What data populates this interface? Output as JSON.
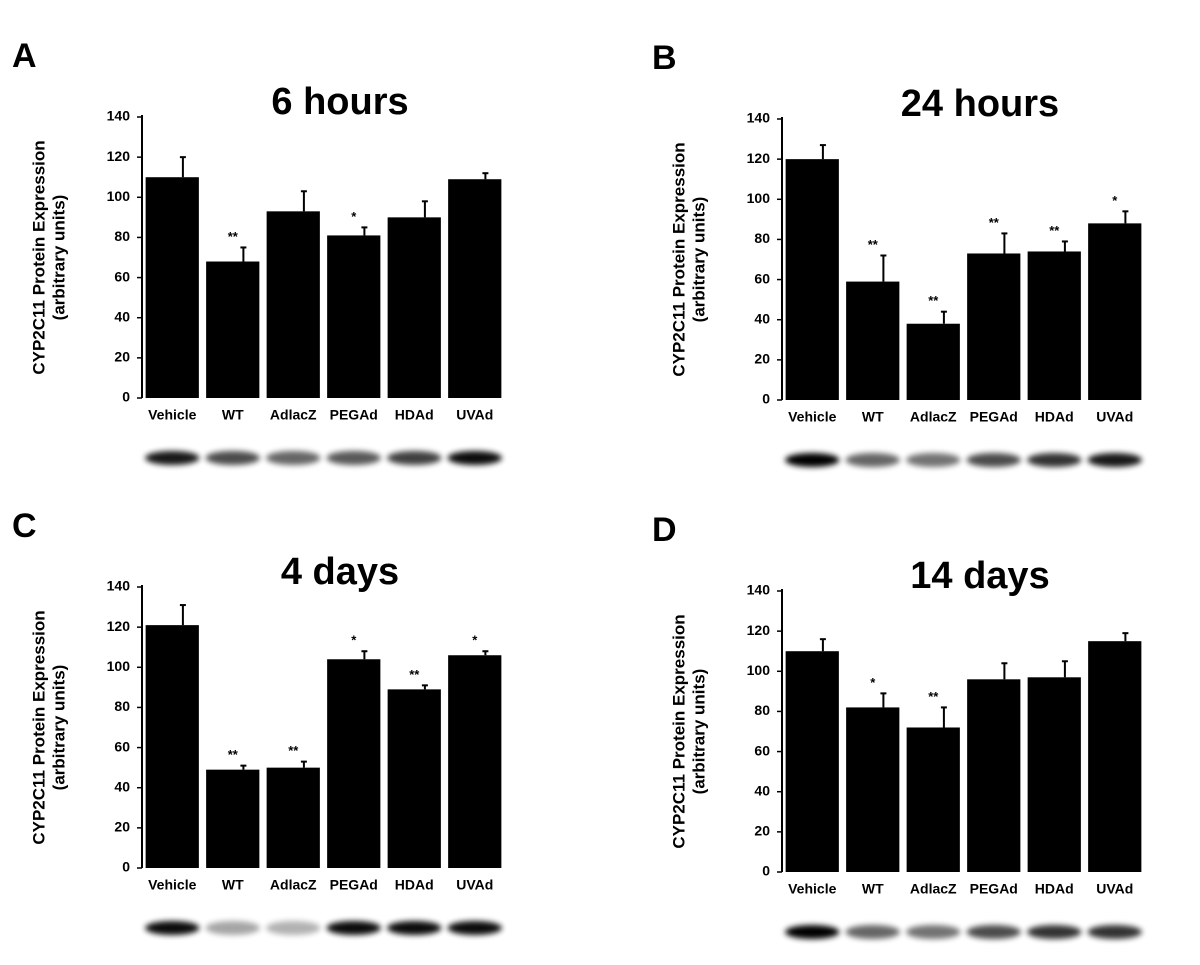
{
  "chart_data": [
    {
      "type": "bar",
      "panel": "A",
      "title": "6 hours",
      "ylabel": [
        "CYP2C11 Protein Expression",
        "(arbitrary units)"
      ],
      "categories": [
        "Vehicle",
        "WT",
        "AdlacZ",
        "PEGAd",
        "HDAd",
        "UVAd"
      ],
      "values": [
        110,
        68,
        93,
        81,
        90,
        109
      ],
      "errors": [
        10,
        7,
        10,
        4,
        8,
        3
      ],
      "annotations": [
        null,
        "**",
        null,
        "*",
        null,
        null
      ],
      "color": "#000000",
      "ylim": [
        0,
        140
      ],
      "yticks": [
        0,
        20,
        40,
        60,
        80,
        100,
        120,
        140
      ]
    },
    {
      "type": "bar",
      "panel": "B",
      "title": "24 hours",
      "ylabel": [
        "CYP2C11 Protein Expression",
        "(arbitrary units)"
      ],
      "categories": [
        "Vehicle",
        "WT",
        "AdlacZ",
        "PEGAd",
        "HDAd",
        "UVAd"
      ],
      "values": [
        120,
        59,
        38,
        73,
        74,
        88
      ],
      "errors": [
        7,
        13,
        6,
        10,
        5,
        6
      ],
      "annotations": [
        null,
        "**",
        "**",
        "**",
        "**",
        "*"
      ],
      "color": "#000000",
      "ylim": [
        0,
        140
      ],
      "yticks": [
        0,
        20,
        40,
        60,
        80,
        100,
        120,
        140
      ]
    },
    {
      "type": "bar",
      "panel": "C",
      "title": "4 days",
      "ylabel": [
        "CYP2C11 Protein Expression",
        "(arbitrary units)"
      ],
      "categories": [
        "Vehicle",
        "WT",
        "AdlacZ",
        "PEGAd",
        "HDAd",
        "UVAd"
      ],
      "values": [
        121,
        49,
        50,
        104,
        89,
        106
      ],
      "errors": [
        10,
        2,
        3,
        4,
        2,
        2
      ],
      "annotations": [
        null,
        "**",
        "**",
        "*",
        "**",
        "*"
      ],
      "color": "#000000",
      "ylim": [
        0,
        140
      ],
      "yticks": [
        0,
        20,
        40,
        60,
        80,
        100,
        120,
        140
      ]
    },
    {
      "type": "bar",
      "panel": "D",
      "title": "14 days",
      "ylabel": [
        "CYP2C11 Protein Expression",
        "(arbitrary units)"
      ],
      "categories": [
        "Vehicle",
        "WT",
        "AdlacZ",
        "PEGAd",
        "HDAd",
        "UVAd"
      ],
      "values": [
        110,
        82,
        72,
        96,
        97,
        115
      ],
      "errors": [
        6,
        7,
        10,
        8,
        8,
        4
      ],
      "annotations": [
        null,
        "*",
        "**",
        null,
        null,
        null
      ],
      "color": "#000000",
      "ylim": [
        0,
        140
      ],
      "yticks": [
        0,
        20,
        40,
        60,
        80,
        100,
        120,
        140
      ]
    }
  ]
}
